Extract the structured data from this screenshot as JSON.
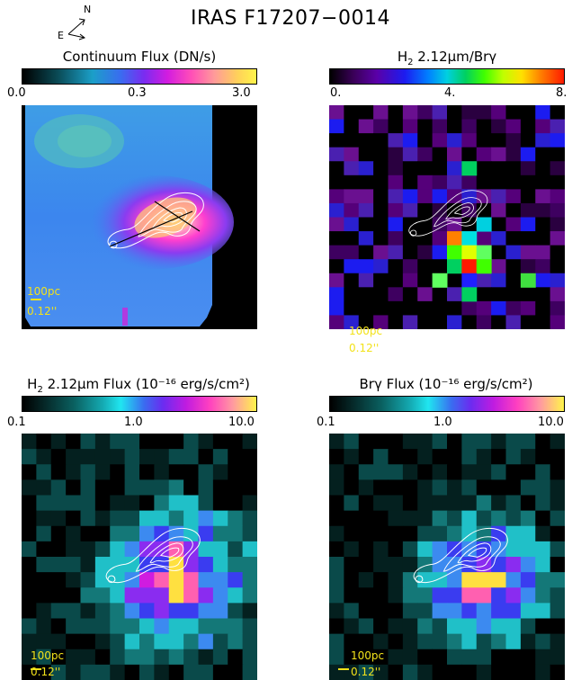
{
  "title": "IRAS F17207−0014",
  "compass": {
    "north": "N",
    "east": "E"
  },
  "panels": [
    {
      "colorbar_title_main": "Continuum Flux (DN/s)",
      "colorbar_title_sub": "",
      "colorbar_title_tail": "",
      "colormap": "continuum",
      "ticks": [
        "0.0",
        "0.3",
        "3.0"
      ]
    },
    {
      "colorbar_title_main": "H",
      "colorbar_title_sub": "2",
      "colorbar_title_tail": " 2.12μm/Brγ",
      "colormap": "rainbow",
      "ticks": [
        "0.",
        "4.",
        "8."
      ]
    },
    {
      "colorbar_title_main": "H",
      "colorbar_title_sub": "2",
      "colorbar_title_tail": " 2.12μm Flux (10⁻¹⁶ erg/s/cm²)",
      "colormap": "flux",
      "ticks": [
        "0.1",
        "1.0",
        "10.0"
      ]
    },
    {
      "colorbar_title_main": "Brγ Flux (10⁻¹⁶ erg/s/cm²)",
      "colorbar_title_sub": "",
      "colorbar_title_tail": "",
      "colormap": "flux",
      "ticks": [
        "0.1",
        "1.0",
        "10.0"
      ]
    }
  ],
  "scale_bar": {
    "physical": "100pc",
    "angular": "0.12''",
    "color": "#f2e21a"
  },
  "colors": {
    "contour": "#ffffff",
    "slit": "#000000",
    "scale": "#f2e21a"
  }
}
